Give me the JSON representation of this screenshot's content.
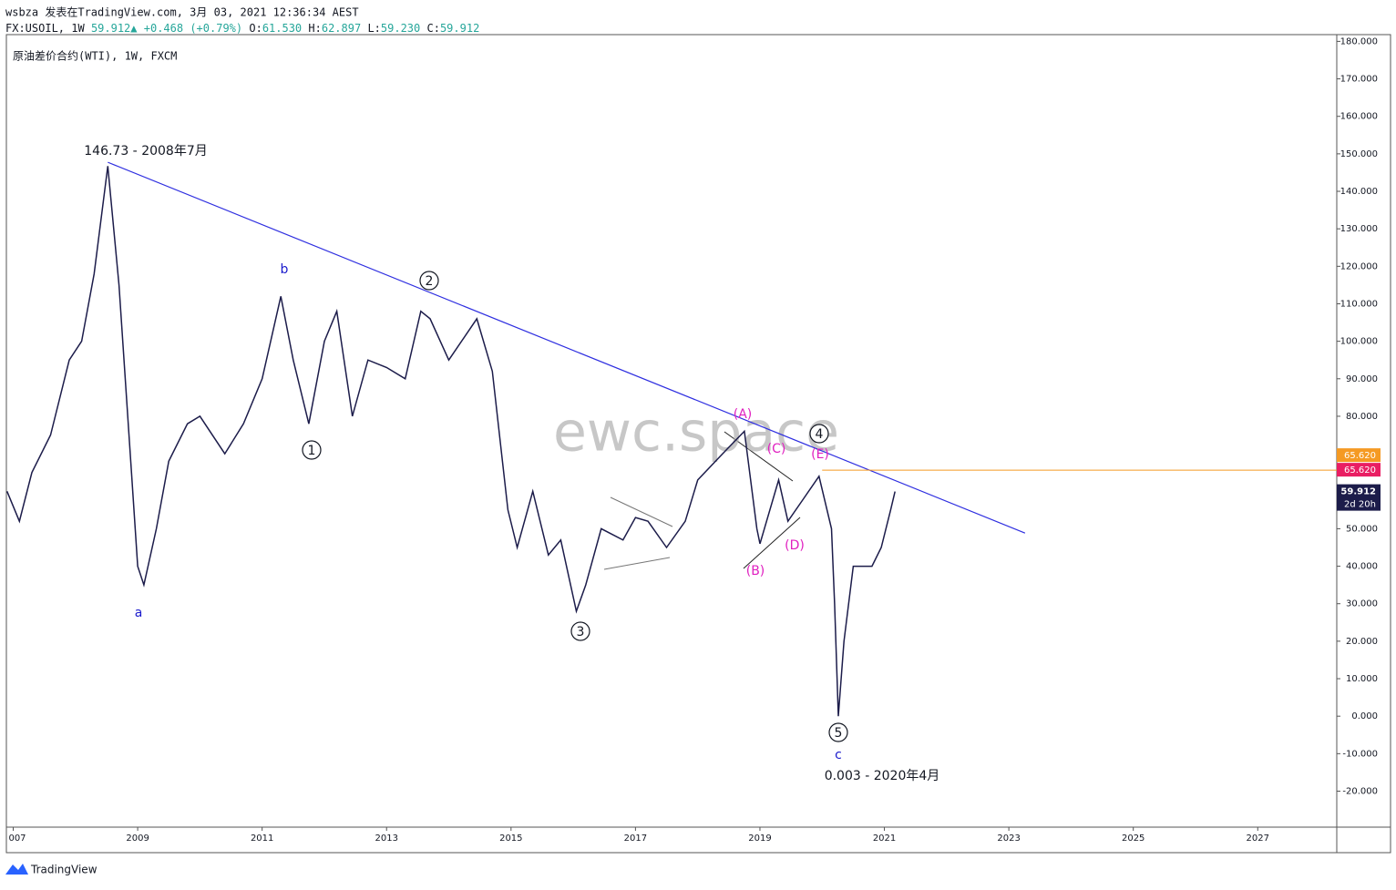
{
  "header": {
    "publisher": "wsbza 发表在TradingView.com, 3月 03, 2021 12:36:34 AEST",
    "symbol": "FX:USOIL, 1W",
    "last": "59.912",
    "change": "▲ +0.468 (+0.79%)",
    "o_label": "O:",
    "o": "61.530",
    "h_label": "H:",
    "h": "62.897",
    "l_label": "L:",
    "l": "59.230",
    "c_label": "C:",
    "c": "59.912",
    "instrument": "原油差价合约(WTI), 1W, FXCM"
  },
  "chart_data": {
    "type": "line",
    "color": "#1c1c4a",
    "x": [
      2006.9,
      2007.1,
      2007.3,
      2007.6,
      2007.9,
      2008.1,
      2008.3,
      2008.52,
      2008.7,
      2008.9,
      2009.0,
      2009.1,
      2009.3,
      2009.5,
      2009.8,
      2010.0,
      2010.4,
      2010.7,
      2011.0,
      2011.3,
      2011.5,
      2011.75,
      2012.0,
      2012.2,
      2012.45,
      2012.7,
      2013.0,
      2013.3,
      2013.55,
      2013.7,
      2014.0,
      2014.45,
      2014.7,
      2014.95,
      2015.1,
      2015.35,
      2015.6,
      2015.8,
      2016.05,
      2016.2,
      2016.45,
      2016.8,
      2017.0,
      2017.2,
      2017.5,
      2017.8,
      2018.0,
      2018.4,
      2018.75,
      2018.95,
      2019.0,
      2019.3,
      2019.45,
      2019.7,
      2019.95,
      2020.15,
      2020.2,
      2020.26,
      2020.35,
      2020.5,
      2020.8,
      2020.95,
      2021.1,
      2021.17
    ],
    "values": [
      60,
      52,
      65,
      75,
      95,
      100,
      118,
      146.73,
      115,
      65,
      40,
      35,
      50,
      68,
      78,
      80,
      70,
      78,
      90,
      112,
      95,
      78,
      100,
      108,
      80,
      95,
      93,
      90,
      108,
      106,
      95,
      106,
      92,
      55,
      45,
      60,
      43,
      47,
      28,
      35,
      50,
      47,
      53,
      52,
      45,
      52,
      63,
      70,
      76,
      50,
      46,
      63,
      52,
      58,
      64,
      50,
      30,
      0.003,
      20,
      40,
      40,
      45,
      55,
      59.912
    ],
    "xlim": [
      2006.89,
      2028.27
    ],
    "ylim": [
      -29.6,
      181.8
    ],
    "xticks": [
      {
        "value": 2007,
        "label": "007"
      },
      2009,
      2011,
      2013,
      2015,
      2017,
      2019,
      2021,
      2023,
      2025,
      2027
    ],
    "yticks": [
      {
        "value": 180,
        "label": "180.000"
      },
      {
        "value": 170,
        "label": "170.000"
      },
      {
        "value": 160,
        "label": "160.000"
      },
      {
        "value": 150,
        "label": "150.000"
      },
      {
        "value": 140,
        "label": "140.000"
      },
      {
        "value": 130,
        "label": "130.000"
      },
      {
        "value": 120,
        "label": "120.000"
      },
      {
        "value": 110,
        "label": "110.000"
      },
      {
        "value": 100,
        "label": "100.000"
      },
      {
        "value": 90,
        "label": "90.000"
      },
      {
        "value": 80,
        "label": "80.000"
      },
      {
        "value": 70,
        "label": "70.000"
      },
      {
        "value": 60,
        "label": "60.000"
      },
      {
        "value": 50,
        "label": "50.000"
      },
      {
        "value": 40,
        "label": "40.000"
      },
      {
        "value": 30,
        "label": "30.000"
      },
      {
        "value": 20,
        "label": "20.000"
      },
      {
        "value": 10,
        "label": "10.000"
      },
      {
        "value": 0,
        "label": "0.000"
      },
      {
        "value": -10,
        "label": "-10.000"
      },
      {
        "value": -20,
        "label": "-20.000"
      }
    ],
    "trendline": {
      "x": [
        2008.52,
        2023.26
      ],
      "y": [
        147.75,
        48.85
      ],
      "color": "#2f2fe0"
    },
    "level": {
      "value": 65.62,
      "label": "65.620",
      "x0": 2020.0,
      "color": "#f59a23",
      "tag_color": "#e91e63"
    },
    "last_price": {
      "value": 59.912,
      "label": "59.912",
      "countdown": "2d 20h"
    },
    "annotations": {
      "high": "146.73 - 2008年7月",
      "low": "0.003 - 2020年4月",
      "a": "a",
      "b": "b",
      "c": "c",
      "w1": "1",
      "w2": "2",
      "w3": "3",
      "w4": "4",
      "w5": "5",
      "A": "(A)",
      "B": "(B)",
      "C": "(C)",
      "D": "(D)",
      "E": "(E)",
      "watermark": "ewc.space"
    }
  },
  "footer": {
    "brand": "TradingView"
  }
}
